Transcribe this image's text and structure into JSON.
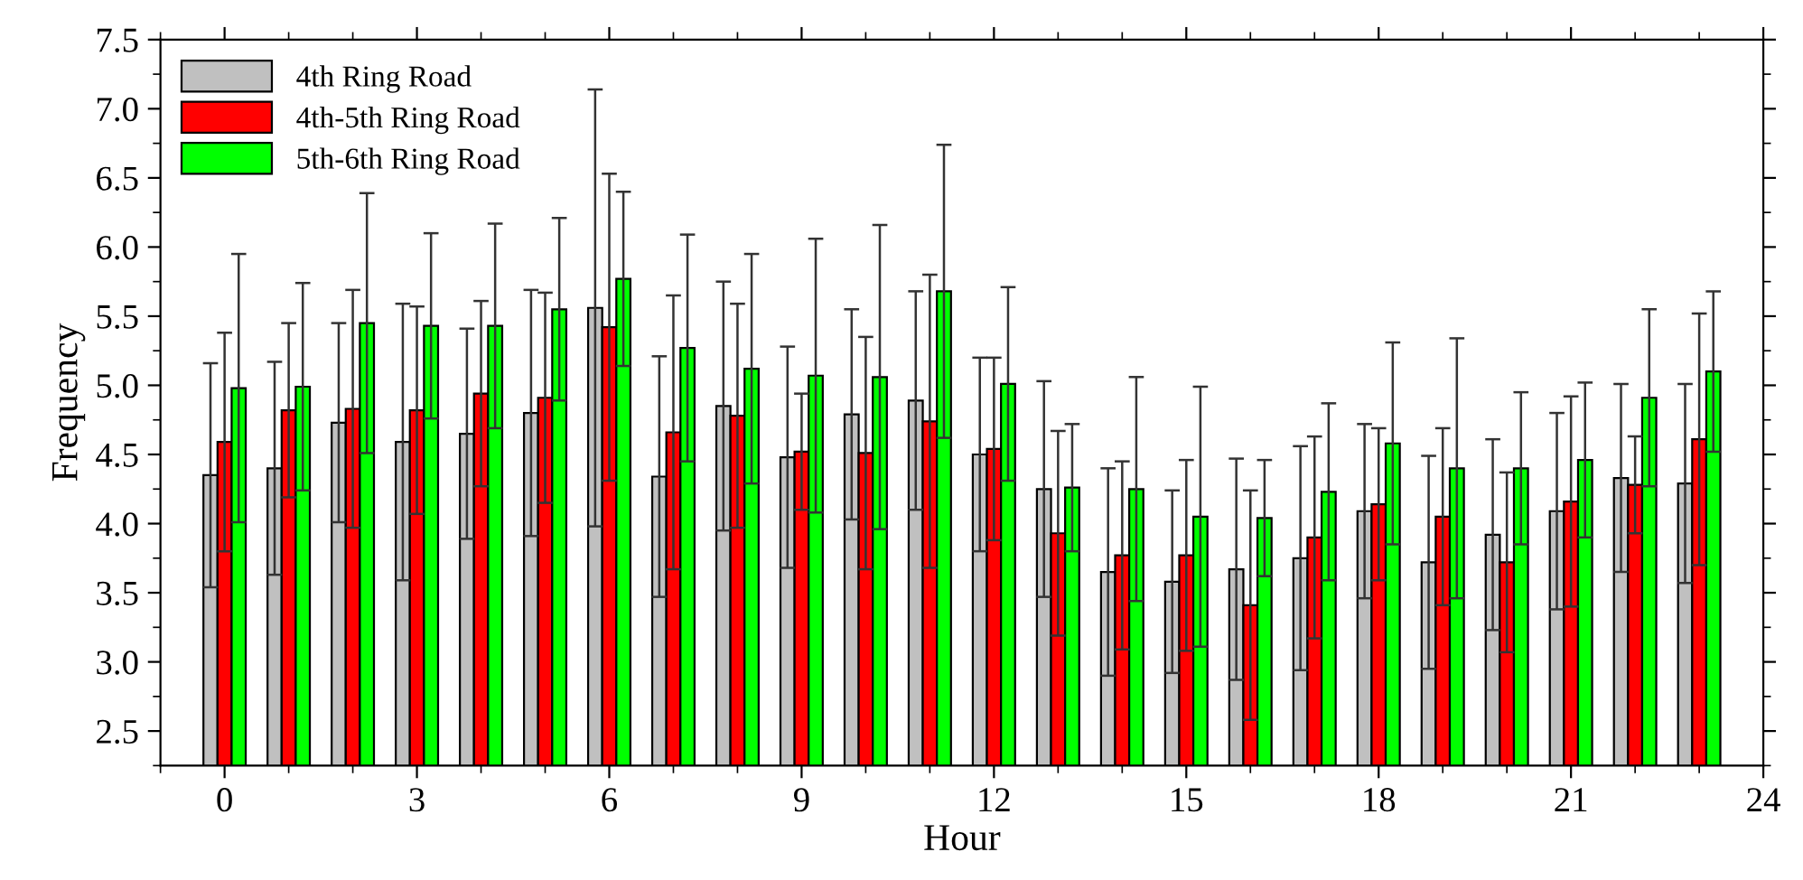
{
  "chart_data": {
    "type": "bar",
    "xlabel": "Hour",
    "ylabel": "Frequency",
    "x": [
      0,
      1,
      2,
      3,
      4,
      5,
      6,
      7,
      8,
      9,
      10,
      11,
      12,
      13,
      14,
      15,
      16,
      17,
      18,
      19,
      20,
      21,
      22,
      23
    ],
    "xlim": [
      -1,
      24
    ],
    "xticks": [
      0,
      3,
      6,
      9,
      12,
      15,
      18,
      21,
      24
    ],
    "ylim": [
      2.25,
      7.5
    ],
    "yticks": [
      {
        "value": 2.5,
        "label": "2.5"
      },
      {
        "value": 3,
        "label": "3.0"
      },
      {
        "value": 3.5,
        "label": "3.5"
      },
      {
        "value": 4,
        "label": "4.0"
      },
      {
        "value": 4.5,
        "label": "4.5"
      },
      {
        "value": 5,
        "label": "5.0"
      },
      {
        "value": 5.5,
        "label": "5.5"
      },
      {
        "value": 6,
        "label": "6.0"
      },
      {
        "value": 6.5,
        "label": "6.5"
      },
      {
        "value": 7,
        "label": "7.0"
      },
      {
        "value": 7.5,
        "label": "7.5"
      }
    ],
    "legend": "top left",
    "grid": false,
    "series": [
      {
        "name": "4th Ring Road",
        "color": "#c0c0c0",
        "values": [
          4.35,
          4.4,
          4.73,
          4.59,
          4.65,
          4.8,
          5.56,
          4.34,
          4.85,
          4.48,
          4.79,
          4.89,
          4.5,
          4.25,
          3.65,
          3.58,
          3.67,
          3.75,
          4.09,
          3.72,
          3.92,
          4.09,
          4.33,
          4.29
        ],
        "errors": [
          0.81,
          0.77,
          0.72,
          1.0,
          0.76,
          0.89,
          1.58,
          0.87,
          0.9,
          0.8,
          0.76,
          0.79,
          0.7,
          0.78,
          0.75,
          0.66,
          0.8,
          0.81,
          0.63,
          0.77,
          0.69,
          0.71,
          0.68,
          0.72
        ]
      },
      {
        "name": "4th-5th Ring Road",
        "color": "#ff0000",
        "values": [
          4.59,
          4.82,
          4.83,
          4.82,
          4.94,
          4.91,
          5.42,
          4.66,
          4.78,
          4.52,
          4.51,
          4.74,
          4.54,
          3.93,
          3.77,
          3.77,
          3.41,
          3.9,
          4.14,
          4.05,
          3.72,
          4.16,
          4.28,
          4.61
        ],
        "errors": [
          0.79,
          0.63,
          0.86,
          0.75,
          0.67,
          0.76,
          1.11,
          0.99,
          0.81,
          0.42,
          0.84,
          1.06,
          0.66,
          0.74,
          0.68,
          0.69,
          0.83,
          0.73,
          0.55,
          0.64,
          0.65,
          0.76,
          0.35,
          0.91
        ]
      },
      {
        "name": "5th-6th Ring Road",
        "color": "#00ff00",
        "values": [
          4.98,
          4.99,
          5.45,
          5.43,
          5.43,
          5.55,
          5.77,
          5.27,
          5.12,
          5.07,
          5.06,
          5.68,
          5.01,
          4.26,
          4.25,
          4.05,
          4.04,
          4.23,
          4.58,
          4.4,
          4.4,
          4.46,
          4.91,
          5.1
        ],
        "errors": [
          0.97,
          0.75,
          0.94,
          0.67,
          0.74,
          0.66,
          0.63,
          0.82,
          0.83,
          0.99,
          1.1,
          1.06,
          0.7,
          0.46,
          0.81,
          0.94,
          0.42,
          0.64,
          0.73,
          0.94,
          0.55,
          0.56,
          0.64,
          0.58
        ]
      }
    ]
  }
}
